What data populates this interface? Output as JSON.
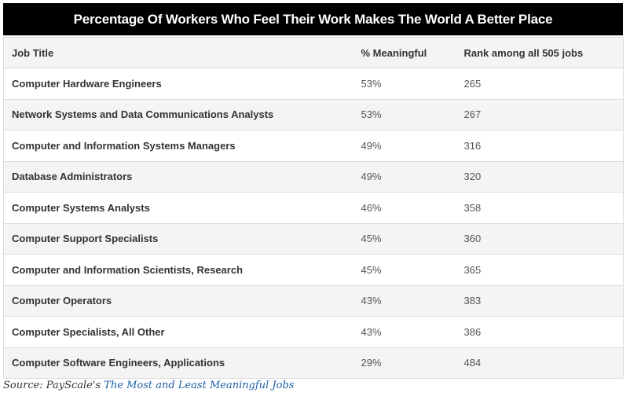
{
  "chart_data": {
    "type": "table",
    "title": "Percentage Of Workers Who Feel Their Work Makes The World A Better Place",
    "columns": [
      "Job Title",
      "% Meaningful",
      "Rank among all 505 jobs"
    ],
    "rows": [
      [
        "Computer Hardware Engineers",
        "53%",
        "265"
      ],
      [
        "Network Systems and Data Communications Analysts",
        "53%",
        "267"
      ],
      [
        "Computer and Information Systems Managers",
        "49%",
        "316"
      ],
      [
        "Database Administrators",
        "49%",
        "320"
      ],
      [
        "Computer Systems Analysts",
        "46%",
        "358"
      ],
      [
        "Computer Support Specialists",
        "45%",
        "360"
      ],
      [
        "Computer and Information Scientists, Research",
        "45%",
        "365"
      ],
      [
        "Computer Operators",
        "43%",
        "383"
      ],
      [
        "Computer Specialists, All Other",
        "43%",
        "386"
      ],
      [
        "Computer Software Engineers, Applications",
        "29%",
        "484"
      ]
    ]
  },
  "source": {
    "prefix": "Source: PayScale's ",
    "link_text": "The Most and Least Meaningful Jobs"
  },
  "colors": {
    "title_bg": "#000000",
    "title_fg": "#ffffff",
    "row_alt": "#f4f4f4",
    "link": "#1f5fa6"
  }
}
